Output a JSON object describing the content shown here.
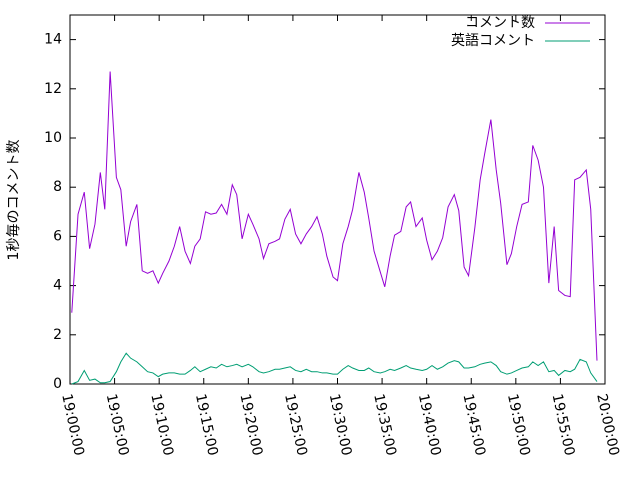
{
  "chart_data": {
    "type": "line",
    "y_label": "1秒毎のコメント数",
    "x": [
      "19:00:12",
      "19:00:54",
      "19:01:36",
      "19:02:12",
      "19:02:48",
      "19:03:24",
      "19:03:54",
      "19:04:30",
      "19:05:12",
      "19:05:42",
      "19:06:18",
      "19:06:48",
      "19:07:30",
      "19:08:06",
      "19:08:42",
      "19:09:18",
      "19:09:54",
      "19:10:24",
      "19:11:06",
      "19:11:42",
      "19:12:18",
      "19:12:54",
      "19:13:30",
      "19:14:00",
      "19:14:36",
      "19:15:12",
      "19:15:48",
      "19:16:24",
      "19:17:00",
      "19:17:36",
      "19:18:12",
      "19:18:42",
      "19:19:18",
      "19:20:00",
      "19:20:30",
      "19:21:12",
      "19:21:42",
      "19:22:18",
      "19:23:00",
      "19:23:30",
      "19:24:06",
      "19:24:42",
      "19:25:18",
      "19:25:54",
      "19:26:30",
      "19:27:06",
      "19:27:42",
      "19:28:18",
      "19:28:48",
      "19:29:30",
      "19:30:00",
      "19:30:36",
      "19:31:12",
      "19:31:42",
      "19:32:24",
      "19:33:00",
      "19:33:30",
      "19:34:06",
      "19:34:48",
      "19:35:18",
      "19:35:54",
      "19:36:24",
      "19:37:06",
      "19:37:42",
      "19:38:12",
      "19:38:48",
      "19:39:30",
      "19:40:00",
      "19:40:36",
      "19:41:12",
      "19:41:48",
      "19:42:24",
      "19:43:06",
      "19:43:36",
      "19:44:12",
      "19:44:42",
      "19:45:24",
      "19:46:00",
      "19:46:30",
      "19:47:12",
      "19:47:48",
      "19:48:18",
      "19:49:00",
      "19:49:30",
      "19:50:06",
      "19:50:42",
      "19:51:24",
      "19:51:54",
      "19:52:30",
      "19:53:06",
      "19:53:42",
      "19:54:18",
      "19:54:48",
      "19:55:30",
      "19:56:06",
      "19:56:36",
      "19:57:12",
      "19:57:54",
      "19:58:24",
      "19:59:06"
    ],
    "series": [
      {
        "name": "コメント数",
        "color": "#9400d3",
        "values": [
          2.9,
          6.9,
          7.8,
          5.5,
          6.5,
          8.6,
          7.1,
          12.7,
          8.4,
          7.9,
          5.6,
          6.6,
          7.3,
          4.6,
          4.5,
          4.6,
          4.1,
          4.5,
          5.0,
          5.6,
          6.4,
          5.4,
          4.9,
          5.6,
          5.9,
          7.0,
          6.9,
          6.95,
          7.3,
          6.9,
          8.1,
          7.7,
          5.9,
          6.9,
          6.5,
          5.9,
          5.1,
          5.7,
          5.8,
          5.9,
          6.7,
          7.1,
          6.1,
          5.7,
          6.1,
          6.4,
          6.8,
          6.1,
          5.2,
          4.35,
          4.2,
          5.7,
          6.4,
          7.1,
          8.6,
          7.8,
          6.75,
          5.4,
          4.55,
          3.95,
          5.2,
          6.05,
          6.2,
          7.2,
          7.4,
          6.4,
          6.75,
          5.85,
          5.05,
          5.4,
          5.95,
          7.2,
          7.7,
          7.05,
          4.75,
          4.4,
          6.35,
          8.3,
          9.35,
          10.75,
          8.7,
          7.35,
          4.85,
          5.3,
          6.4,
          7.3,
          7.4,
          9.7,
          9.1,
          8.0,
          4.1,
          6.4,
          3.8,
          3.6,
          3.55,
          8.3,
          8.4,
          8.7,
          7.1,
          0.95
        ]
      },
      {
        "name": "英語コメント",
        "color": "#009e73",
        "values": [
          0,
          0.1,
          0.55,
          0.15,
          0.2,
          0.05,
          0.05,
          0.1,
          0.5,
          0.9,
          1.25,
          1.05,
          0.9,
          0.7,
          0.5,
          0.45,
          0.3,
          0.4,
          0.45,
          0.45,
          0.4,
          0.4,
          0.55,
          0.7,
          0.5,
          0.6,
          0.7,
          0.65,
          0.8,
          0.7,
          0.75,
          0.8,
          0.7,
          0.8,
          0.7,
          0.5,
          0.45,
          0.5,
          0.6,
          0.6,
          0.65,
          0.7,
          0.55,
          0.5,
          0.6,
          0.5,
          0.5,
          0.45,
          0.45,
          0.4,
          0.4,
          0.6,
          0.75,
          0.65,
          0.55,
          0.55,
          0.65,
          0.5,
          0.45,
          0.5,
          0.6,
          0.55,
          0.65,
          0.75,
          0.65,
          0.6,
          0.55,
          0.6,
          0.75,
          0.6,
          0.7,
          0.85,
          0.95,
          0.9,
          0.65,
          0.65,
          0.7,
          0.8,
          0.85,
          0.9,
          0.75,
          0.5,
          0.4,
          0.45,
          0.55,
          0.65,
          0.7,
          0.9,
          0.75,
          0.9,
          0.5,
          0.55,
          0.35,
          0.55,
          0.5,
          0.6,
          1.0,
          0.9,
          0.45,
          0.1
        ]
      }
    ],
    "xlim": [
      "19:00:00",
      "20:00:00"
    ],
    "xticks": [
      "19:00:00",
      "19:05:00",
      "19:10:00",
      "19:15:00",
      "19:20:00",
      "19:25:00",
      "19:30:00",
      "19:35:00",
      "19:40:00",
      "19:45:00",
      "19:50:00",
      "19:55:00",
      "20:00:00"
    ],
    "ylim": [
      0,
      15
    ],
    "yticks": [
      0,
      2,
      4,
      6,
      8,
      10,
      12,
      14
    ],
    "legend": "top-right"
  }
}
